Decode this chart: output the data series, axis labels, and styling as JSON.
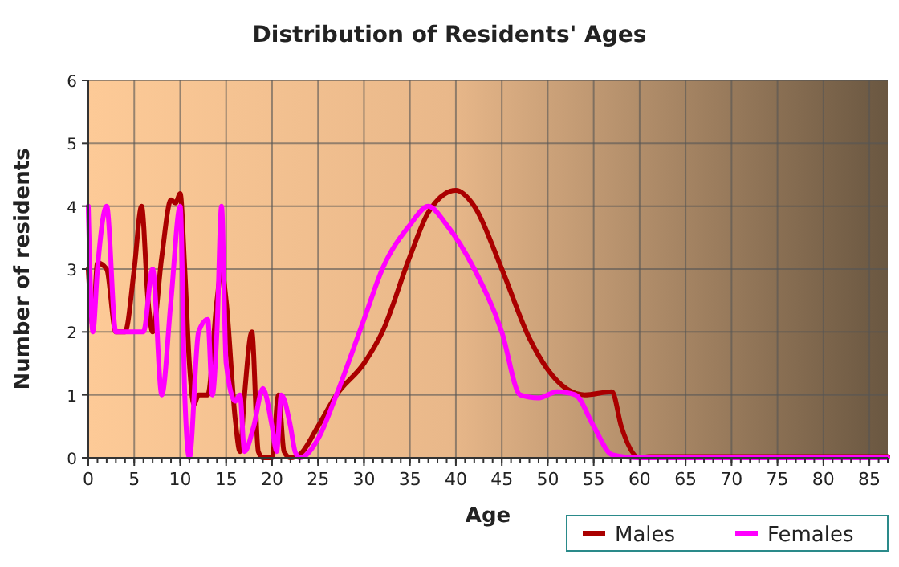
{
  "chart_data": {
    "type": "line",
    "title": "Distribution of Residents' Ages",
    "xlabel": "Age",
    "ylabel": "Number of residents",
    "xlim": [
      0,
      87
    ],
    "xticks": [
      0,
      5,
      10,
      15,
      20,
      25,
      30,
      35,
      40,
      45,
      50,
      55,
      60,
      65,
      70,
      75,
      80,
      85
    ],
    "ylim": [
      0,
      6
    ],
    "yticks": [
      0,
      1,
      2,
      3,
      4,
      5,
      6
    ],
    "grid": true,
    "legend": "bottom right",
    "marker": "none",
    "line_style": "solid",
    "series": [
      {
        "name": "Males",
        "color": "#aa0000",
        "x": [
          0,
          0.5,
          1,
          2,
          3,
          4,
          5,
          5.8,
          6.5,
          7,
          8,
          9,
          9.5,
          10,
          10.5,
          11,
          11.5,
          12,
          13,
          14,
          14.5,
          15,
          16,
          16.5,
          17,
          17.8,
          18.5,
          19,
          20,
          20.7,
          21.3,
          22,
          23,
          25,
          27,
          30,
          32,
          35,
          37,
          40,
          42,
          45,
          48,
          50,
          52,
          54,
          57,
          58,
          60,
          61,
          87
        ],
        "values": [
          3,
          2.1,
          3.1,
          3,
          2,
          2,
          3,
          4,
          2.5,
          2,
          3.2,
          4.1,
          4.05,
          4.2,
          3,
          1.5,
          0.85,
          1,
          1,
          2.5,
          3,
          2.5,
          0.6,
          0.1,
          1,
          2,
          0.1,
          0,
          0,
          1,
          0.1,
          0,
          0.05,
          0.5,
          1,
          1.5,
          2,
          3.2,
          3.9,
          4.25,
          4,
          3,
          1.9,
          1.4,
          1.1,
          1,
          1.05,
          0.5,
          0,
          0.02,
          0.02
        ]
      },
      {
        "name": "Females",
        "color": "#ff00ff",
        "x": [
          0,
          0.5,
          1,
          2,
          3,
          5,
          6,
          7,
          8,
          9,
          10,
          10.5,
          11,
          12,
          13,
          13.5,
          14,
          14.5,
          15,
          16,
          16.5,
          17,
          18,
          19,
          20,
          20.5,
          21,
          22,
          22.5,
          23,
          25,
          27,
          30,
          32,
          35,
          37,
          39,
          42,
          45,
          47,
          49,
          51,
          53,
          55,
          57,
          60,
          87
        ],
        "values": [
          4,
          2,
          3,
          4,
          2,
          2,
          2,
          3,
          1,
          2.5,
          4,
          1,
          0,
          2,
          2.2,
          1,
          2,
          4,
          1.5,
          0.9,
          1,
          0.1,
          0.5,
          1.1,
          0.5,
          0.1,
          1,
          0.5,
          0.1,
          0,
          0.3,
          1,
          2.2,
          3,
          3.7,
          4,
          3.7,
          3,
          2,
          1,
          0.95,
          1.05,
          1,
          0.5,
          0.05,
          0,
          0
        ]
      }
    ]
  }
}
